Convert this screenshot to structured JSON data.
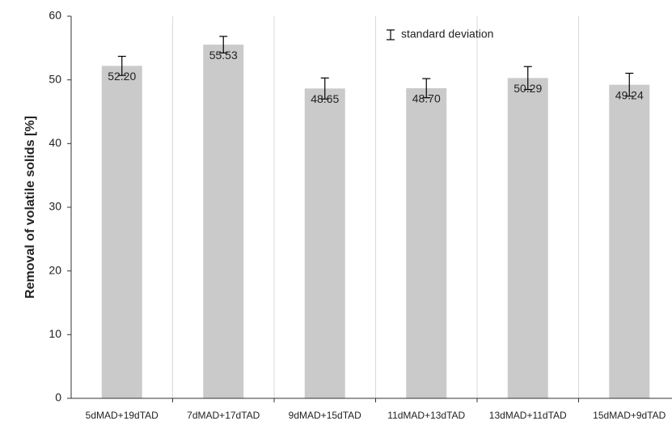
{
  "chart_data": {
    "type": "bar",
    "ylabel": "Removal of volatile solids [%]",
    "categories": [
      "5dMAD+19dTAD",
      "7dMAD+17dTAD",
      "9dMAD+15dTAD",
      "11dMAD+13dTAD",
      "13dMAD+11dTAD",
      "15dMAD+9dTAD"
    ],
    "values": [
      52.2,
      55.53,
      48.65,
      48.7,
      50.29,
      49.24
    ],
    "value_labels": [
      "52.20",
      "55.53",
      "48.65",
      "48.70",
      "50.29",
      "49.24"
    ],
    "errors": [
      1.5,
      1.3,
      1.65,
      1.5,
      1.8,
      1.8
    ],
    "error_legend": "standard deviation",
    "color": "#c9cac9",
    "error_color": "#000000",
    "ylim": [
      0,
      60
    ],
    "yticks": [
      0,
      10,
      20,
      30,
      40,
      50,
      60
    ],
    "grid": "vertical"
  }
}
